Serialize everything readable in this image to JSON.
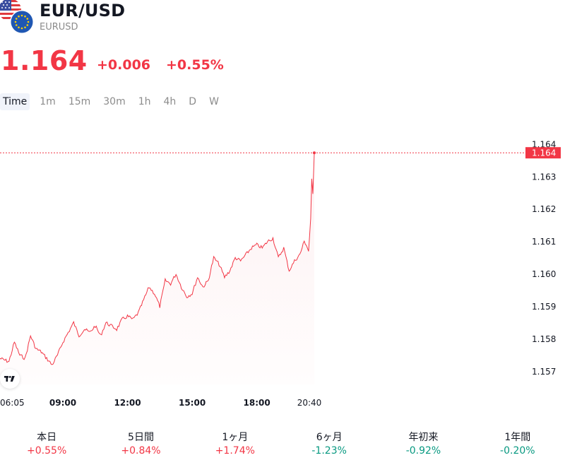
{
  "header": {
    "symbol": "EUR/USD",
    "ticker": "EURUSD",
    "icon": "us-eu-flags-icon"
  },
  "quote": {
    "price": "1.164",
    "change": "+0.006",
    "change_percent": "+0.55%",
    "color": "#f23645"
  },
  "intervals": [
    "Time",
    "1m",
    "15m",
    "30m",
    "1h",
    "4h",
    "D",
    "W"
  ],
  "selected_interval": "Time",
  "chart_data": {
    "type": "area",
    "line_color": "#f23645",
    "x_ticks": [
      {
        "label": "06:05",
        "t": 6.083,
        "bold": false
      },
      {
        "label": "09:00",
        "t": 9.0,
        "bold": true
      },
      {
        "label": "12:00",
        "t": 12.0,
        "bold": true
      },
      {
        "label": "15:00",
        "t": 15.0,
        "bold": true
      },
      {
        "label": "18:00",
        "t": 18.0,
        "bold": true
      },
      {
        "label": "20:40",
        "t": 20.667,
        "bold": false
      }
    ],
    "y_ticks": [
      "1.157",
      "1.158",
      "1.159",
      "1.160",
      "1.161",
      "1.162",
      "1.163",
      "1.164"
    ],
    "ylim": [
      1.1566,
      1.1643
    ],
    "current_value": 1.16373,
    "current_label": "1.164",
    "series": [
      {
        "x": [
          6.08,
          6.5,
          6.75,
          7.0,
          7.25,
          7.5,
          7.75,
          8.0,
          8.25,
          8.5,
          8.75,
          9.0,
          9.25,
          9.5,
          9.75,
          10.0,
          10.25,
          10.5,
          10.75,
          11.0,
          11.25,
          11.5,
          11.75,
          12.0,
          12.25,
          12.5,
          12.75,
          13.0,
          13.25,
          13.5,
          13.75,
          14.0,
          14.25,
          14.5,
          14.75,
          15.0,
          15.25,
          15.5,
          15.75,
          16.0,
          16.25,
          16.5,
          16.75,
          17.0,
          17.25,
          17.5,
          17.75,
          18.0,
          18.25,
          18.5,
          18.75,
          19.0,
          19.25,
          19.5,
          19.75,
          20.0,
          20.2,
          20.3,
          20.4,
          20.5,
          20.55,
          20.6,
          20.667
        ],
        "y": [
          1.1574,
          1.1573,
          1.1579,
          1.1575,
          1.1574,
          1.1581,
          1.1577,
          1.1576,
          1.1574,
          1.1572,
          1.1575,
          1.1579,
          1.1582,
          1.1585,
          1.1581,
          1.1583,
          1.1582,
          1.1584,
          1.1581,
          1.1585,
          1.1584,
          1.1583,
          1.1586,
          1.1587,
          1.1586,
          1.1588,
          1.1592,
          1.1596,
          1.1594,
          1.159,
          1.1598,
          1.1597,
          1.16,
          1.1596,
          1.1593,
          1.1594,
          1.1599,
          1.1596,
          1.1598,
          1.1605,
          1.1603,
          1.1599,
          1.1601,
          1.1605,
          1.1604,
          1.1606,
          1.1608,
          1.1609,
          1.1608,
          1.161,
          1.1611,
          1.1605,
          1.1608,
          1.1601,
          1.1604,
          1.1606,
          1.161,
          1.1609,
          1.1607,
          1.1617,
          1.1629,
          1.1625,
          1.16373
        ]
      }
    ]
  },
  "periods": [
    {
      "label": "本日",
      "value": "+0.55%",
      "dir": "up"
    },
    {
      "label": "5日間",
      "value": "+0.84%",
      "dir": "up"
    },
    {
      "label": "1ヶ月",
      "value": "+1.74%",
      "dir": "up"
    },
    {
      "label": "6ヶ月",
      "value": "-1.23%",
      "dir": "down"
    },
    {
      "label": "年初来",
      "value": "-0.92%",
      "dir": "down"
    },
    {
      "label": "1年間",
      "value": "-0.20%",
      "dir": "down"
    }
  ],
  "logo_icon": "tradingview-logo-icon"
}
